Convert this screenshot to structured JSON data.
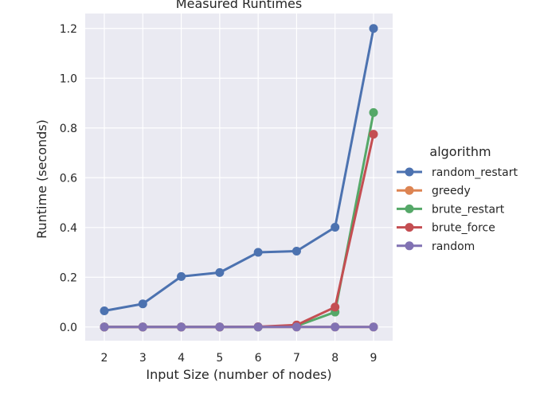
{
  "chart_data": {
    "type": "line",
    "title": "Measured Runtimes",
    "xlabel": "Input Size (number of nodes)",
    "ylabel": "Runtime (seconds)",
    "categories": [
      "2",
      "3",
      "4",
      "5",
      "6",
      "7",
      "8",
      "9"
    ],
    "ylim": [
      -0.055,
      1.26
    ],
    "yticks": [
      0.0,
      0.2,
      0.4,
      0.6,
      0.8,
      1.0,
      1.2
    ],
    "ytick_labels": [
      "0.0",
      "0.2",
      "0.4",
      "0.6",
      "0.8",
      "1.0",
      "1.2"
    ],
    "grid": true,
    "legend": {
      "title": "algorithm",
      "placement": "right"
    },
    "series": [
      {
        "name": "random_restart",
        "color": "#4c72b0",
        "values": [
          0.065,
          0.093,
          0.203,
          0.219,
          0.3,
          0.305,
          0.401,
          1.2
        ]
      },
      {
        "name": "greedy",
        "color": "#dd8452",
        "values": [
          0.0,
          0.0,
          0.0,
          0.0,
          0.0,
          0.0,
          0.0,
          0.0
        ]
      },
      {
        "name": "brute_restart",
        "color": "#55a868",
        "values": [
          0.0,
          0.0,
          0.0,
          0.0,
          0.0,
          0.004,
          0.06,
          0.862
        ]
      },
      {
        "name": "brute_force",
        "color": "#c44e52",
        "values": [
          0.0,
          0.0,
          0.0,
          0.0,
          0.001,
          0.008,
          0.08,
          0.775
        ]
      },
      {
        "name": "random",
        "color": "#8172b3",
        "values": [
          0.0,
          0.0,
          0.0,
          0.0,
          0.0,
          0.0,
          0.0,
          0.0
        ]
      }
    ]
  }
}
